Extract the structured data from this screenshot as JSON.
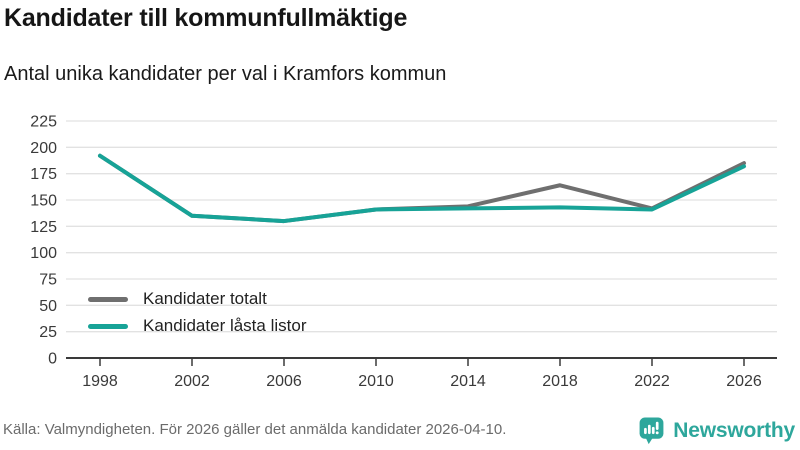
{
  "header": {
    "title": "Kandidater till kommunfullmäktige",
    "subtitle": "Antal unika kandidater per val i Kramfors kommun"
  },
  "chart_data": {
    "type": "line",
    "title": "Kandidater till kommunfullmäktige",
    "subtitle": "Antal unika kandidater per val i Kramfors kommun",
    "x": [
      1998,
      2002,
      2006,
      2010,
      2014,
      2018,
      2022,
      2026
    ],
    "series": [
      {
        "name": "Kandidater totalt",
        "color": "#6F6F6F",
        "values": [
          192,
          135,
          130,
          141,
          144,
          164,
          142,
          185
        ]
      },
      {
        "name": "Kandidater låsta listor",
        "color": "#17A397",
        "values": [
          192,
          135,
          130,
          141,
          142,
          143,
          141,
          182
        ]
      }
    ],
    "ylim": [
      0,
      225
    ],
    "yticks": [
      0,
      25,
      50,
      75,
      100,
      125,
      150,
      175,
      200,
      225
    ],
    "xticks": [
      1998,
      2002,
      2006,
      2010,
      2014,
      2018,
      2022,
      2026
    ],
    "grid": "horizontal",
    "legend_position": "inside-lower-left"
  },
  "footer": {
    "source": "Källa: Valmyndigheten. För 2026 gäller det anmälda kandidater 2026-04-10.",
    "brand": "Newsworthy",
    "brand_color": "#2EA79C"
  }
}
